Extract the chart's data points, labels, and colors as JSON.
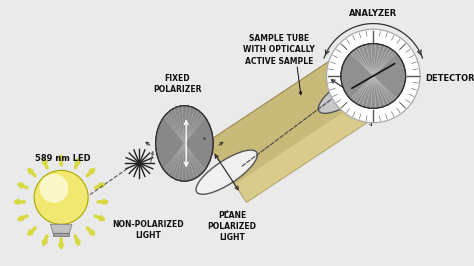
{
  "background_color": "#ebebeb",
  "labels": {
    "led": "589 nm LED",
    "non_polarized": "NON-POLARIZED\nLIGHT",
    "fixed_polarizer": "FIXED\nPOLARIZER",
    "plane_polarized": "PLANE\nPOLARIZED\nLIGHT",
    "sample_tube": "SAMPLE TUBE\nWITH OPTICALLY\nACTIVE SAMPLE",
    "analyzer": "ANALYZER",
    "detector": "DETECTOR"
  },
  "colors": {
    "background": "#eaeaea",
    "bulb_outer": "#f0e870",
    "bulb_inner": "#f8f560",
    "bulb_top": "#fffff0",
    "bulb_base": "#b0b0b0",
    "rays": "#d8d840",
    "polarizer_bg": "#888888",
    "polarizer_lines": "#aaaaaa",
    "tube_body": "#c8ba78",
    "tube_highlight": "#ddd090",
    "tube_shadow": "#a09050",
    "tube_end_white": "#f0f0f0",
    "tube_end_gray": "#c8c8c8",
    "analyzer_white": "#f5f5f5",
    "analyzer_ring": "#d0d0d0",
    "analyzer_disk": "#909090",
    "arrow_dark": "#333333",
    "dashed_color": "#555555",
    "text_color": "#111111",
    "star_color": "#222222"
  }
}
